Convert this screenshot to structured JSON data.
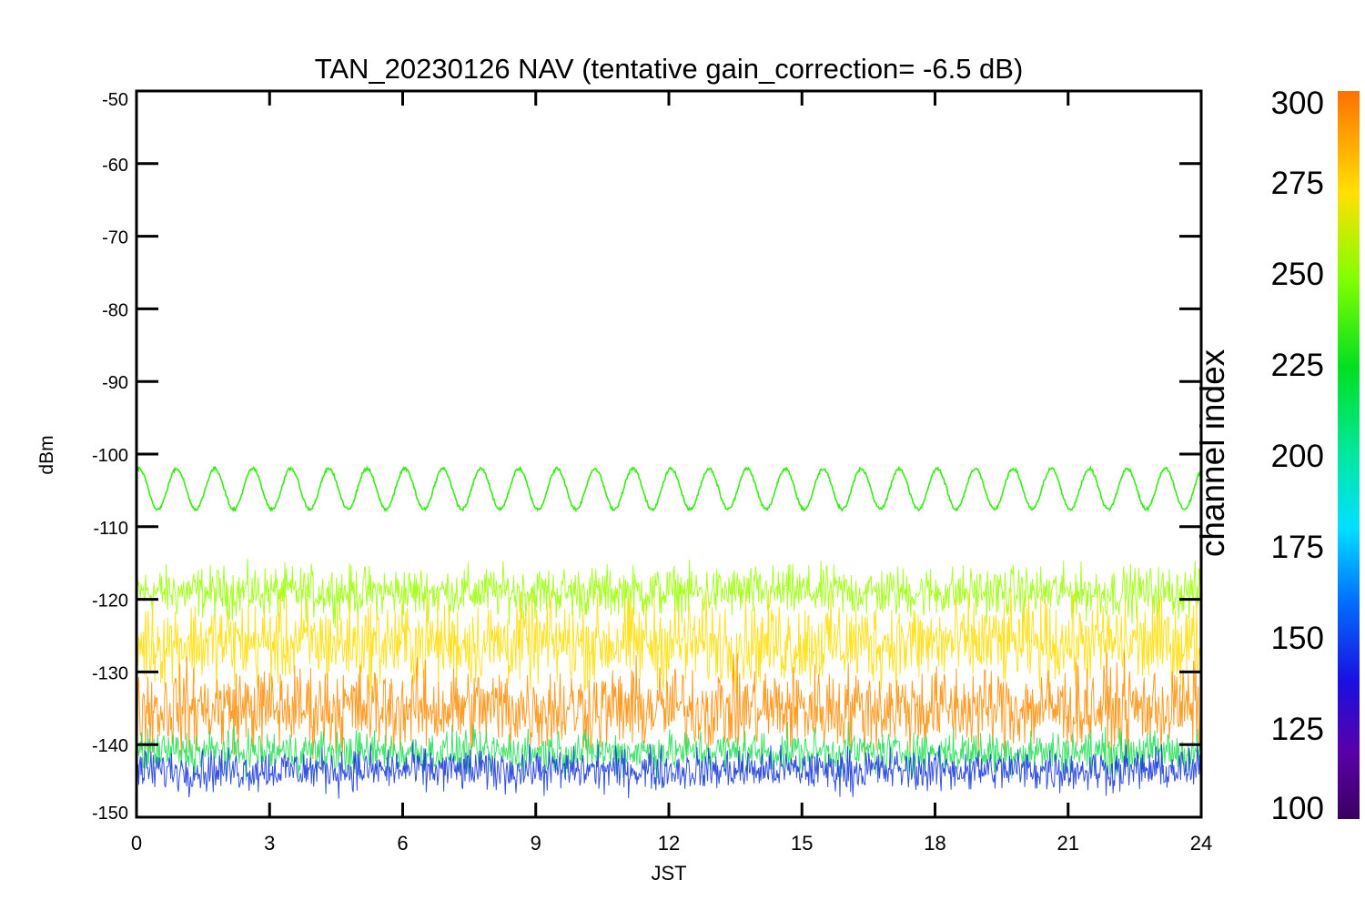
{
  "chart_data": {
    "type": "line",
    "title": "TAN_20230126 NAV (tentative gain_correction= -6.5 dB)",
    "xlabel": "JST",
    "ylabel": "dBm",
    "xlim": [
      0,
      24
    ],
    "ylim": [
      -150,
      -50
    ],
    "x_ticks": [
      "0",
      "3",
      "6",
      "9",
      "12",
      "15",
      "18",
      "21",
      "24"
    ],
    "y_ticks": [
      "-50",
      "-60",
      "-70",
      "-80",
      "-90",
      "-100",
      "-110",
      "-120",
      "-130",
      "-140",
      "-150"
    ],
    "grid": false,
    "colorbar": {
      "label": "channel index",
      "range": [
        100,
        300
      ],
      "ticks": [
        "300",
        "275",
        "250",
        "225",
        "200",
        "175",
        "150",
        "125",
        "100"
      ],
      "colormap": "rainbow"
    },
    "series": [
      {
        "channel_index": 245,
        "color": "#33ee11",
        "shape": "oscillating",
        "center_dbm": -104.8,
        "amplitude_db": 2.8,
        "cycles": 28
      },
      {
        "channel_index": 262,
        "color": "#99ff00",
        "shape": "noise",
        "center_dbm": -119,
        "spread_db": 3
      },
      {
        "channel_index": 275,
        "color": "#ffdd00",
        "shape": "noise",
        "center_dbm": -126,
        "spread_db": 5
      },
      {
        "channel_index": 290,
        "color": "#ff8c00",
        "shape": "noise",
        "center_dbm": -135,
        "spread_db": 5
      },
      {
        "channel_index": 220,
        "color": "#22dd55",
        "shape": "noise",
        "center_dbm": -141,
        "spread_db": 2.5
      },
      {
        "channel_index": 150,
        "color": "#1133dd",
        "shape": "noise",
        "center_dbm": -143.5,
        "spread_db": 2.5
      }
    ]
  }
}
